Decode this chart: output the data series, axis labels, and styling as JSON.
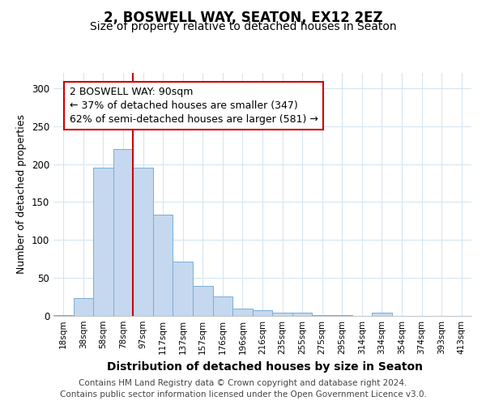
{
  "title": "2, BOSWELL WAY, SEATON, EX12 2EZ",
  "subtitle": "Size of property relative to detached houses in Seaton",
  "xlabel": "Distribution of detached houses by size in Seaton",
  "ylabel": "Number of detached properties",
  "bar_color": "#c5d8f0",
  "bar_edge_color": "#7aadd4",
  "background_color": "#ffffff",
  "fig_background": "#ffffff",
  "grid_color": "#d8e4f0",
  "categories": [
    "18sqm",
    "38sqm",
    "58sqm",
    "78sqm",
    "97sqm",
    "117sqm",
    "137sqm",
    "157sqm",
    "176sqm",
    "196sqm",
    "216sqm",
    "235sqm",
    "255sqm",
    "275sqm",
    "295sqm",
    "314sqm",
    "334sqm",
    "354sqm",
    "374sqm",
    "393sqm",
    "413sqm"
  ],
  "values": [
    1,
    24,
    195,
    220,
    195,
    133,
    72,
    40,
    26,
    10,
    8,
    4,
    4,
    1,
    1,
    0,
    4,
    0,
    0,
    0,
    0
  ],
  "ylim": [
    0,
    320
  ],
  "yticks": [
    0,
    50,
    100,
    150,
    200,
    250,
    300
  ],
  "property_line_index": 4,
  "annotation_text": "2 BOSWELL WAY: 90sqm\n← 37% of detached houses are smaller (347)\n62% of semi-detached houses are larger (581) →",
  "annotation_box_facecolor": "#ffffff",
  "annotation_border_color": "#cc0000",
  "property_line_color": "#cc0000",
  "footer_text": "Contains HM Land Registry data © Crown copyright and database right 2024.\nContains public sector information licensed under the Open Government Licence v3.0.",
  "title_fontsize": 12,
  "subtitle_fontsize": 10,
  "xlabel_fontsize": 10,
  "ylabel_fontsize": 9,
  "annotation_fontsize": 9,
  "footer_fontsize": 7.5
}
